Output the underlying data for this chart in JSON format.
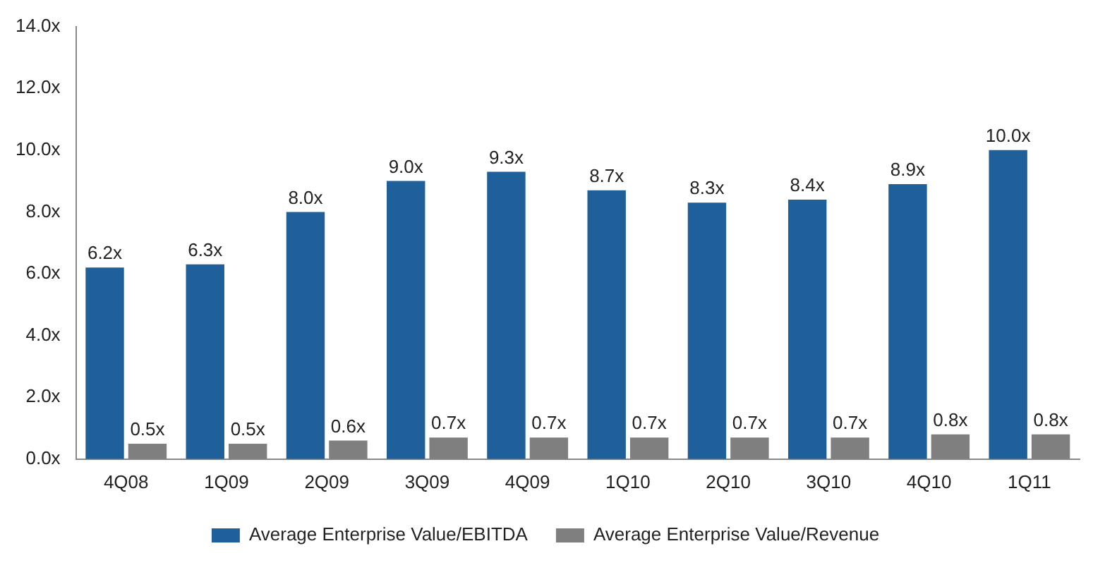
{
  "chart_data": {
    "type": "bar",
    "categories": [
      "4Q08",
      "1Q09",
      "2Q09",
      "3Q09",
      "4Q09",
      "1Q10",
      "2Q10",
      "3Q10",
      "4Q10",
      "1Q11"
    ],
    "series": [
      {
        "name": "Average Enterprise Value/EBITDA",
        "color": "#1f5f9a",
        "values": [
          6.2,
          6.3,
          8.0,
          9.0,
          9.3,
          8.7,
          8.3,
          8.4,
          8.9,
          10.0
        ],
        "value_labels": [
          "6.2x",
          "6.3x",
          "8.0x",
          "9.0x",
          "9.3x",
          "8.7x",
          "8.3x",
          "8.4x",
          "8.9x",
          "10.0x"
        ]
      },
      {
        "name": "Average Enterprise Value/Revenue",
        "color": "#7f7f7f",
        "values": [
          0.5,
          0.5,
          0.6,
          0.7,
          0.7,
          0.7,
          0.7,
          0.7,
          0.8,
          0.8
        ],
        "value_labels": [
          "0.5x",
          "0.5x",
          "0.6x",
          "0.7x",
          "0.7x",
          "0.7x",
          "0.7x",
          "0.7x",
          "0.8x",
          "0.8x"
        ]
      }
    ],
    "ylim": [
      0,
      14
    ],
    "yticks": [
      {
        "value": 0,
        "label": "0.0x"
      },
      {
        "value": 2,
        "label": "2.0x"
      },
      {
        "value": 4,
        "label": "4.0x"
      },
      {
        "value": 6,
        "label": "6.0x"
      },
      {
        "value": 8,
        "label": "8.0x"
      },
      {
        "value": 10,
        "label": "10.0x"
      },
      {
        "value": 12,
        "label": "12.0x"
      },
      {
        "value": 14,
        "label": "14.0x"
      }
    ],
    "grid": false,
    "legend": "bottom"
  }
}
